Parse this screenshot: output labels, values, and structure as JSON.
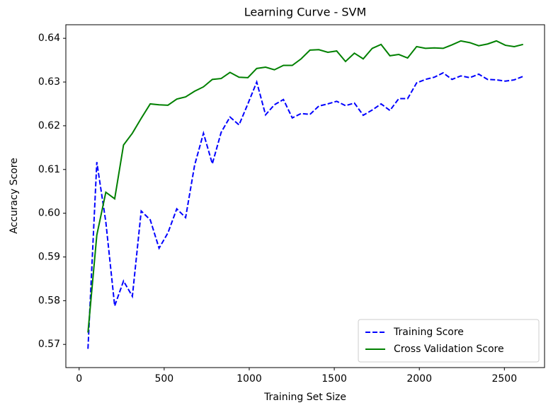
{
  "chart_data": {
    "type": "line",
    "title": "Learning Curve - SVM",
    "x_label": "Training Set Size",
    "y_label": "Accuracy Score",
    "x": [
      52,
      104,
      157,
      209,
      261,
      313,
      365,
      418,
      470,
      522,
      574,
      626,
      679,
      731,
      783,
      835,
      887,
      940,
      992,
      1044,
      1096,
      1148,
      1201,
      1253,
      1305,
      1357,
      1409,
      1462,
      1514,
      1566,
      1618,
      1670,
      1723,
      1775,
      1827,
      1879,
      1931,
      1984,
      2036,
      2088,
      2140,
      2192,
      2244,
      2297,
      2349,
      2401,
      2453,
      2506,
      2558,
      2610
    ],
    "series": [
      {
        "name": "Training Score",
        "color": "#0000ff",
        "dash": true,
        "values": [
          0.569,
          0.6117,
          0.598,
          0.5788,
          0.5845,
          0.581,
          0.6005,
          0.5985,
          0.592,
          0.5955,
          0.601,
          0.599,
          0.611,
          0.6183,
          0.6113,
          0.6185,
          0.622,
          0.6202,
          0.625,
          0.63,
          0.6225,
          0.6248,
          0.626,
          0.6218,
          0.6228,
          0.6226,
          0.6245,
          0.625,
          0.6256,
          0.6246,
          0.6252,
          0.6224,
          0.6236,
          0.625,
          0.6235,
          0.6262,
          0.6262,
          0.6298,
          0.6306,
          0.6311,
          0.6321,
          0.6306,
          0.6314,
          0.631,
          0.6318,
          0.6306,
          0.6305,
          0.6302,
          0.6305,
          0.6313
        ]
      },
      {
        "name": "Cross Validation Score",
        "color": "#008000",
        "dash": false,
        "values": [
          0.5727,
          0.595,
          0.6048,
          0.6033,
          0.6156,
          0.6183,
          0.6217,
          0.625,
          0.6248,
          0.6247,
          0.6261,
          0.6266,
          0.6279,
          0.6289,
          0.6306,
          0.6308,
          0.6322,
          0.6311,
          0.631,
          0.6331,
          0.6334,
          0.6328,
          0.6338,
          0.6338,
          0.6353,
          0.6373,
          0.6374,
          0.6368,
          0.6371,
          0.6347,
          0.6366,
          0.6353,
          0.6377,
          0.6386,
          0.636,
          0.6363,
          0.6355,
          0.6381,
          0.6377,
          0.6378,
          0.6377,
          0.6385,
          0.6394,
          0.639,
          0.6383,
          0.6387,
          0.6394,
          0.6384,
          0.6381,
          0.6386
        ]
      }
    ],
    "xlim": [
      -78,
      2736
    ],
    "ylim": [
      0.5647,
      0.6431
    ],
    "xticks": [
      0,
      500,
      1000,
      1500,
      2000,
      2500
    ],
    "yticks": [
      0.57,
      0.58,
      0.59,
      0.6,
      {
        "value": 0.6,
        "label": "0.60"
      },
      0.61,
      0.62,
      0.63,
      0.64
    ],
    "legend": "lower right",
    "grid": false
  }
}
